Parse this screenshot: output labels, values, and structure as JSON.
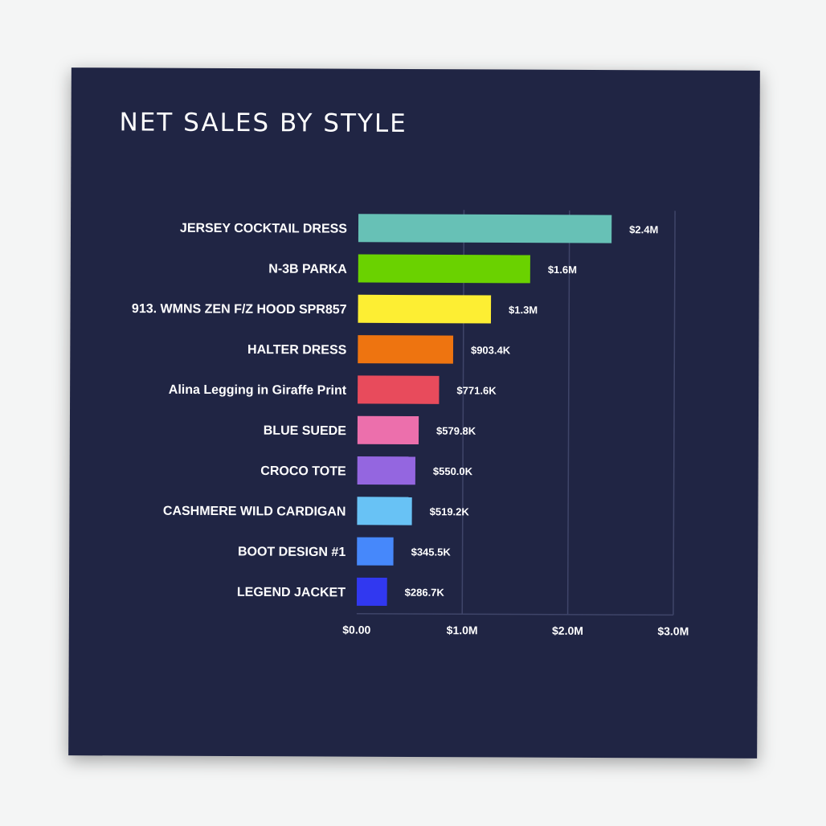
{
  "chart_data": {
    "type": "bar",
    "orientation": "horizontal",
    "title": "NET SALES BY STYLE",
    "xlabel": "",
    "ylabel": "",
    "categories": [
      "JERSEY COCKTAIL DRESS",
      "N-3B PARKA",
      "913. WMNS ZEN F/Z HOOD SPR857",
      "HALTER DRESS",
      "Alina Legging in Giraffe Print",
      "BLUE SUEDE",
      "CROCO TOTE",
      "CASHMERE WILD CARDIGAN",
      "BOOT DESIGN #1",
      "LEGEND JACKET"
    ],
    "values": [
      2400000,
      1630000,
      1260000,
      903400,
      771600,
      579800,
      550000,
      519200,
      345500,
      286700
    ],
    "value_labels": [
      "$2.4M",
      "$1.6M",
      "$1.3M",
      "$903.4K",
      "$771.6K",
      "$579.8K",
      "$550.0K",
      "$519.2K",
      "$345.5K",
      "$286.7K"
    ],
    "colors": [
      "#67c1b6",
      "#6ad200",
      "#fdee33",
      "#ee7410",
      "#e84b5c",
      "#ec6fac",
      "#9466e0",
      "#68c2f5",
      "#4688fb",
      "#3138f0"
    ],
    "xlim": [
      0,
      3000000
    ],
    "xticks": [
      0,
      1000000,
      2000000,
      3000000
    ],
    "xtick_labels": [
      "$0.00",
      "$1.0M",
      "$2.0M",
      "$3.0M"
    ],
    "grid": true,
    "legend": "none"
  },
  "theme": {
    "background": "#202544",
    "gridline": "#3f4569",
    "text": "#ffffff"
  }
}
